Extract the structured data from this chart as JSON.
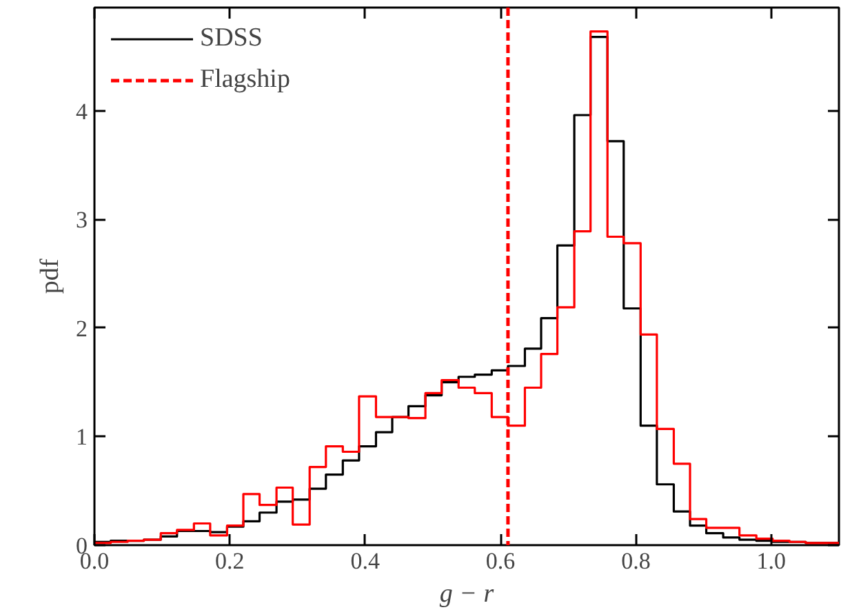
{
  "chart_data": {
    "type": "histogram",
    "xlabel": "g − r",
    "ylabel": "pdf",
    "bins": [
      0,
      0.024,
      0.049,
      0.073,
      0.098,
      0.122,
      0.147,
      0.171,
      0.196,
      0.22,
      0.244,
      0.269,
      0.293,
      0.318,
      0.342,
      0.367,
      0.391,
      0.416,
      0.44,
      0.464,
      0.489,
      0.513,
      0.538,
      0.562,
      0.587,
      0.611,
      0.636,
      0.66,
      0.684,
      0.709,
      0.733,
      0.758,
      0.782,
      0.807,
      0.831,
      0.856,
      0.88,
      0.904,
      0.929,
      0.953,
      0.978,
      1.002,
      1.027,
      1.051,
      1.076,
      1.1
    ],
    "series": [
      {
        "name": "SDSS",
        "color": "#000000",
        "values": [
          0.03,
          0.04,
          0.04,
          0.05,
          0.08,
          0.13,
          0.13,
          0.12,
          0.17,
          0.22,
          0.3,
          0.4,
          0.42,
          0.52,
          0.65,
          0.78,
          0.91,
          1.04,
          1.18,
          1.28,
          1.38,
          1.5,
          1.55,
          1.57,
          1.61,
          1.65,
          1.81,
          2.09,
          2.76,
          3.96,
          4.68,
          3.72,
          2.18,
          1.1,
          0.56,
          0.31,
          0.18,
          0.11,
          0.07,
          0.05,
          0.04,
          0.03,
          0.03,
          0.02,
          0.02
        ]
      },
      {
        "name": "Flagship",
        "color": "#ff0000",
        "values": [
          0.02,
          0.03,
          0.04,
          0.05,
          0.11,
          0.14,
          0.2,
          0.09,
          0.18,
          0.47,
          0.37,
          0.53,
          0.19,
          0.72,
          0.91,
          0.86,
          1.37,
          1.18,
          1.18,
          1.17,
          1.4,
          1.52,
          1.45,
          1.4,
          1.18,
          1.1,
          1.45,
          1.76,
          2.19,
          2.89,
          4.73,
          2.84,
          2.78,
          1.94,
          1.07,
          0.75,
          0.24,
          0.16,
          0.16,
          0.09,
          0.06,
          0.04,
          0.03,
          0.02,
          0.02
        ]
      }
    ],
    "ref_lines": [
      {
        "axis": "x",
        "value": 0.611,
        "color": "#ff0000",
        "line_style": "dashed"
      }
    ],
    "xlim": [
      0,
      1.1
    ],
    "ylim": [
      0,
      4.95
    ],
    "xticks": [
      {
        "value": 0,
        "label": "0.0"
      },
      {
        "value": 0.2,
        "label": "0.2"
      },
      {
        "value": 0.4,
        "label": "0.4"
      },
      {
        "value": 0.6,
        "label": "0.6"
      },
      {
        "value": 0.8,
        "label": "0.8"
      },
      {
        "value": 1.0,
        "label": "1.0"
      }
    ],
    "yticks": [
      0,
      1,
      2,
      3,
      4
    ],
    "grid": false,
    "legend": "top left"
  }
}
